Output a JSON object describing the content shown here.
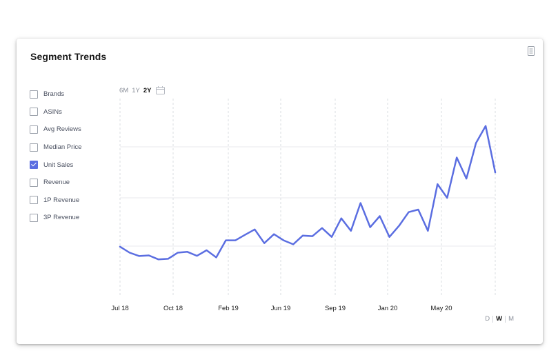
{
  "card": {
    "title": "Segment Trends"
  },
  "metrics": [
    {
      "label": "Brands",
      "checked": false
    },
    {
      "label": "ASINs",
      "checked": false
    },
    {
      "label": "Avg Reviews",
      "checked": false
    },
    {
      "label": "Median Price",
      "checked": false
    },
    {
      "label": "Unit Sales",
      "checked": true
    },
    {
      "label": "Revenue",
      "checked": false
    },
    {
      "label": "1P Revenue",
      "checked": false
    },
    {
      "label": "3P Revenue",
      "checked": false
    }
  ],
  "range_options": {
    "items": [
      "6M",
      "1Y",
      "2Y"
    ],
    "selected": "2Y"
  },
  "granularity": {
    "items": [
      "D",
      "W",
      "M"
    ],
    "selected": "W"
  },
  "icons": {
    "menu": "document-menu-icon",
    "calendar": "calendar-icon"
  },
  "colors": {
    "line": "#5b6ee1",
    "grid": "#d9dce1",
    "accent": "#5b6ee1"
  },
  "chart_data": {
    "type": "line",
    "x_ticks": [
      "Jul 18",
      "Oct 18",
      "Feb 19",
      "Jun 19",
      "Sep 19",
      "Jan 20",
      "May 20"
    ],
    "grid": true,
    "y_axis_labels": false,
    "ylim": [
      0,
      100
    ],
    "series": [
      {
        "values": [
          25.4,
          22.4,
          20.7,
          21.0,
          19.0,
          19.3,
          22.4,
          22.8,
          20.8,
          23.6,
          20.0,
          28.6,
          28.6,
          31.4,
          34.1,
          27.2,
          31.7,
          28.6,
          26.6,
          31.0,
          30.7,
          34.8,
          30.3,
          39.7,
          33.4,
          47.4,
          35.2,
          40.8,
          30.3,
          35.9,
          42.8,
          44.1,
          33.4,
          56.9,
          50.0,
          70.3,
          59.7,
          77.6,
          86.2,
          62.8
        ]
      }
    ]
  }
}
